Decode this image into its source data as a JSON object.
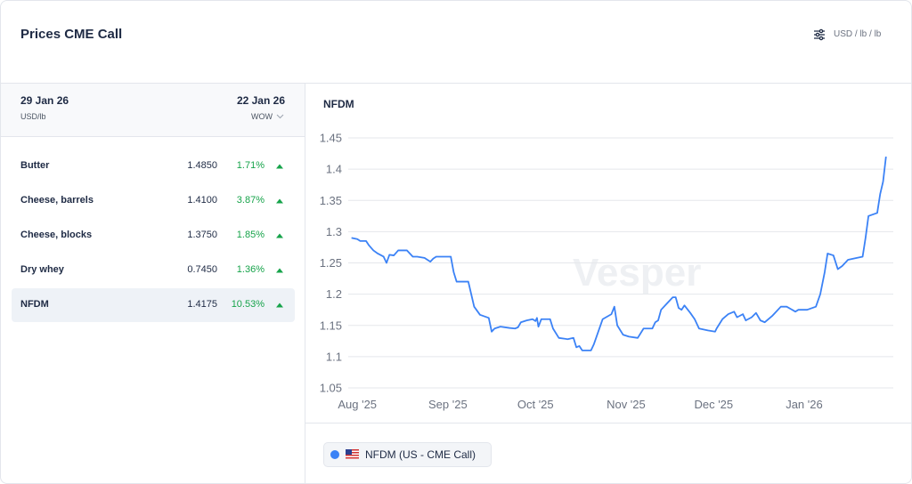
{
  "header": {
    "title": "Prices CME Call",
    "units": "USD / lb / lb"
  },
  "table": {
    "date": "29 Jan 26",
    "unit": "USD/lb",
    "compare_date": "22 Jan 26",
    "compare": "WOW",
    "selected": 4,
    "rows": [
      [
        "Butter",
        "1.4850",
        "1.71%"
      ],
      [
        "Cheese, barrels",
        "1.4100",
        "3.87%"
      ],
      [
        "Cheese, blocks",
        "1.3750",
        "1.85%"
      ],
      [
        "Dry whey",
        "0.7450",
        "1.36%"
      ],
      [
        "NFDM",
        "1.4175",
        "10.53%"
      ]
    ]
  },
  "watermark": "Vesper",
  "chart_data": {
    "type": "line",
    "title": "NFDM",
    "x": [
      -2,
      0,
      1,
      3,
      4,
      5.5,
      7,
      9,
      10,
      11,
      12.5,
      14,
      17,
      19,
      20.5,
      23,
      25,
      26,
      27,
      32,
      33,
      34,
      38,
      39,
      40,
      42,
      45,
      46,
      47,
      49,
      52,
      54,
      55,
      56,
      58,
      60,
      61,
      61.5,
      62,
      63,
      66,
      67,
      69,
      72,
      74,
      75,
      76,
      77,
      80,
      81,
      84,
      87,
      88,
      89,
      91,
      93,
      96,
      98,
      101,
      102,
      103,
      104,
      106,
      108,
      109,
      110,
      111,
      112,
      114,
      115.5,
      117,
      120,
      122.5,
      123,
      125,
      127,
      129,
      130,
      132,
      133,
      135,
      136.5,
      138,
      139.5,
      142,
      143,
      145,
      147,
      150,
      151,
      154,
      157,
      158.5,
      160,
      161,
      163,
      164.5,
      166,
      168,
      171,
      173,
      174,
      175,
      178,
      179,
      180,
      181
    ],
    "series": [
      {
        "name": "NFDM (US - CME Call)",
        "color": "#3b82f6",
        "values": [
          1.29,
          1.288,
          1.285,
          1.285,
          1.278,
          1.27,
          1.265,
          1.26,
          1.25,
          1.263,
          1.262,
          1.27,
          1.27,
          1.26,
          1.26,
          1.258,
          1.252,
          1.257,
          1.26,
          1.26,
          1.235,
          1.22,
          1.22,
          1.2,
          1.18,
          1.167,
          1.162,
          1.14,
          1.145,
          1.148,
          1.146,
          1.145,
          1.147,
          1.155,
          1.158,
          1.16,
          1.157,
          1.162,
          1.148,
          1.16,
          1.16,
          1.145,
          1.13,
          1.128,
          1.13,
          1.115,
          1.117,
          1.11,
          1.11,
          1.12,
          1.16,
          1.168,
          1.18,
          1.15,
          1.135,
          1.132,
          1.13,
          1.145,
          1.145,
          1.155,
          1.158,
          1.175,
          1.185,
          1.195,
          1.195,
          1.178,
          1.175,
          1.182,
          1.17,
          1.16,
          1.145,
          1.142,
          1.14,
          1.145,
          1.16,
          1.168,
          1.172,
          1.163,
          1.168,
          1.158,
          1.163,
          1.17,
          1.158,
          1.155,
          1.165,
          1.17,
          1.18,
          1.18,
          1.172,
          1.175,
          1.175,
          1.18,
          1.2,
          1.235,
          1.265,
          1.262,
          1.24,
          1.245,
          1.255,
          1.258,
          1.26,
          1.29,
          1.325,
          1.33,
          1.36,
          1.38,
          1.42
        ]
      }
    ],
    "xlim": [
      -2.5,
      183.5
    ],
    "xticks": [
      {
        "value": 0,
        "label": "Aug '25"
      },
      {
        "value": 31,
        "label": "Sep '25"
      },
      {
        "value": 61,
        "label": "Oct '25"
      },
      {
        "value": 92,
        "label": "Nov '25"
      },
      {
        "value": 122,
        "label": "Dec '25"
      },
      {
        "value": 153,
        "label": "Jan '26"
      }
    ],
    "ylim": [
      1.05,
      1.45
    ],
    "yticks": [
      1.05,
      1.1,
      1.15,
      1.2,
      1.25,
      1.3,
      1.35,
      1.4,
      1.45
    ],
    "grid": true
  }
}
